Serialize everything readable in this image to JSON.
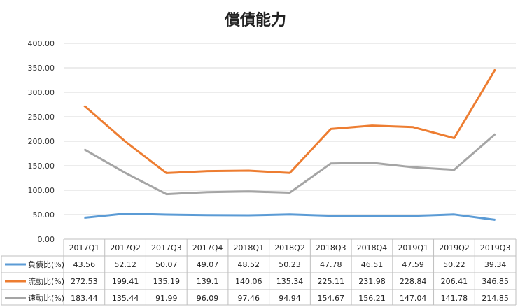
{
  "chart_data": {
    "type": "line",
    "title": "償債能力",
    "categories": [
      "2017Q1",
      "2017Q2",
      "2017Q3",
      "2017Q4",
      "2018Q1",
      "2018Q2",
      "2018Q3",
      "2018Q4",
      "2019Q1",
      "2019Q2",
      "2019Q3"
    ],
    "ylim": [
      0,
      400
    ],
    "yticks": [
      "0.00",
      "50.00",
      "100.00",
      "150.00",
      "200.00",
      "250.00",
      "300.00",
      "350.00",
      "400.00"
    ],
    "grid": true,
    "legend": "data-table-left",
    "series": [
      {
        "name": "負債比(%)",
        "color": "#5b9bd5",
        "values": [
          43.56,
          52.12,
          50.07,
          49.07,
          48.52,
          50.23,
          47.78,
          46.51,
          47.59,
          50.22,
          39.34
        ],
        "labels": [
          "43.56",
          "52.12",
          "50.07",
          "49.07",
          "48.52",
          "50.23",
          "47.78",
          "46.51",
          "47.59",
          "50.22",
          "39.34"
        ]
      },
      {
        "name": "流動比(%)",
        "color": "#ed7d31",
        "values": [
          272.53,
          199.41,
          135.19,
          139.1,
          140.06,
          135.34,
          225.11,
          231.98,
          228.84,
          206.41,
          346.85
        ],
        "labels": [
          "272.53",
          "199.41",
          "135.19",
          "139.1",
          "140.06",
          "135.34",
          "225.11",
          "231.98",
          "228.84",
          "206.41",
          "346.85"
        ]
      },
      {
        "name": "速動比(%)",
        "color": "#a5a5a5",
        "values": [
          183.44,
          135.44,
          91.99,
          96.09,
          97.46,
          94.94,
          154.67,
          156.21,
          147.04,
          141.78,
          214.85
        ],
        "labels": [
          "183.44",
          "135.44",
          "91.99",
          "96.09",
          "97.46",
          "94.94",
          "154.67",
          "156.21",
          "147.04",
          "141.78",
          "214.85"
        ]
      }
    ]
  }
}
